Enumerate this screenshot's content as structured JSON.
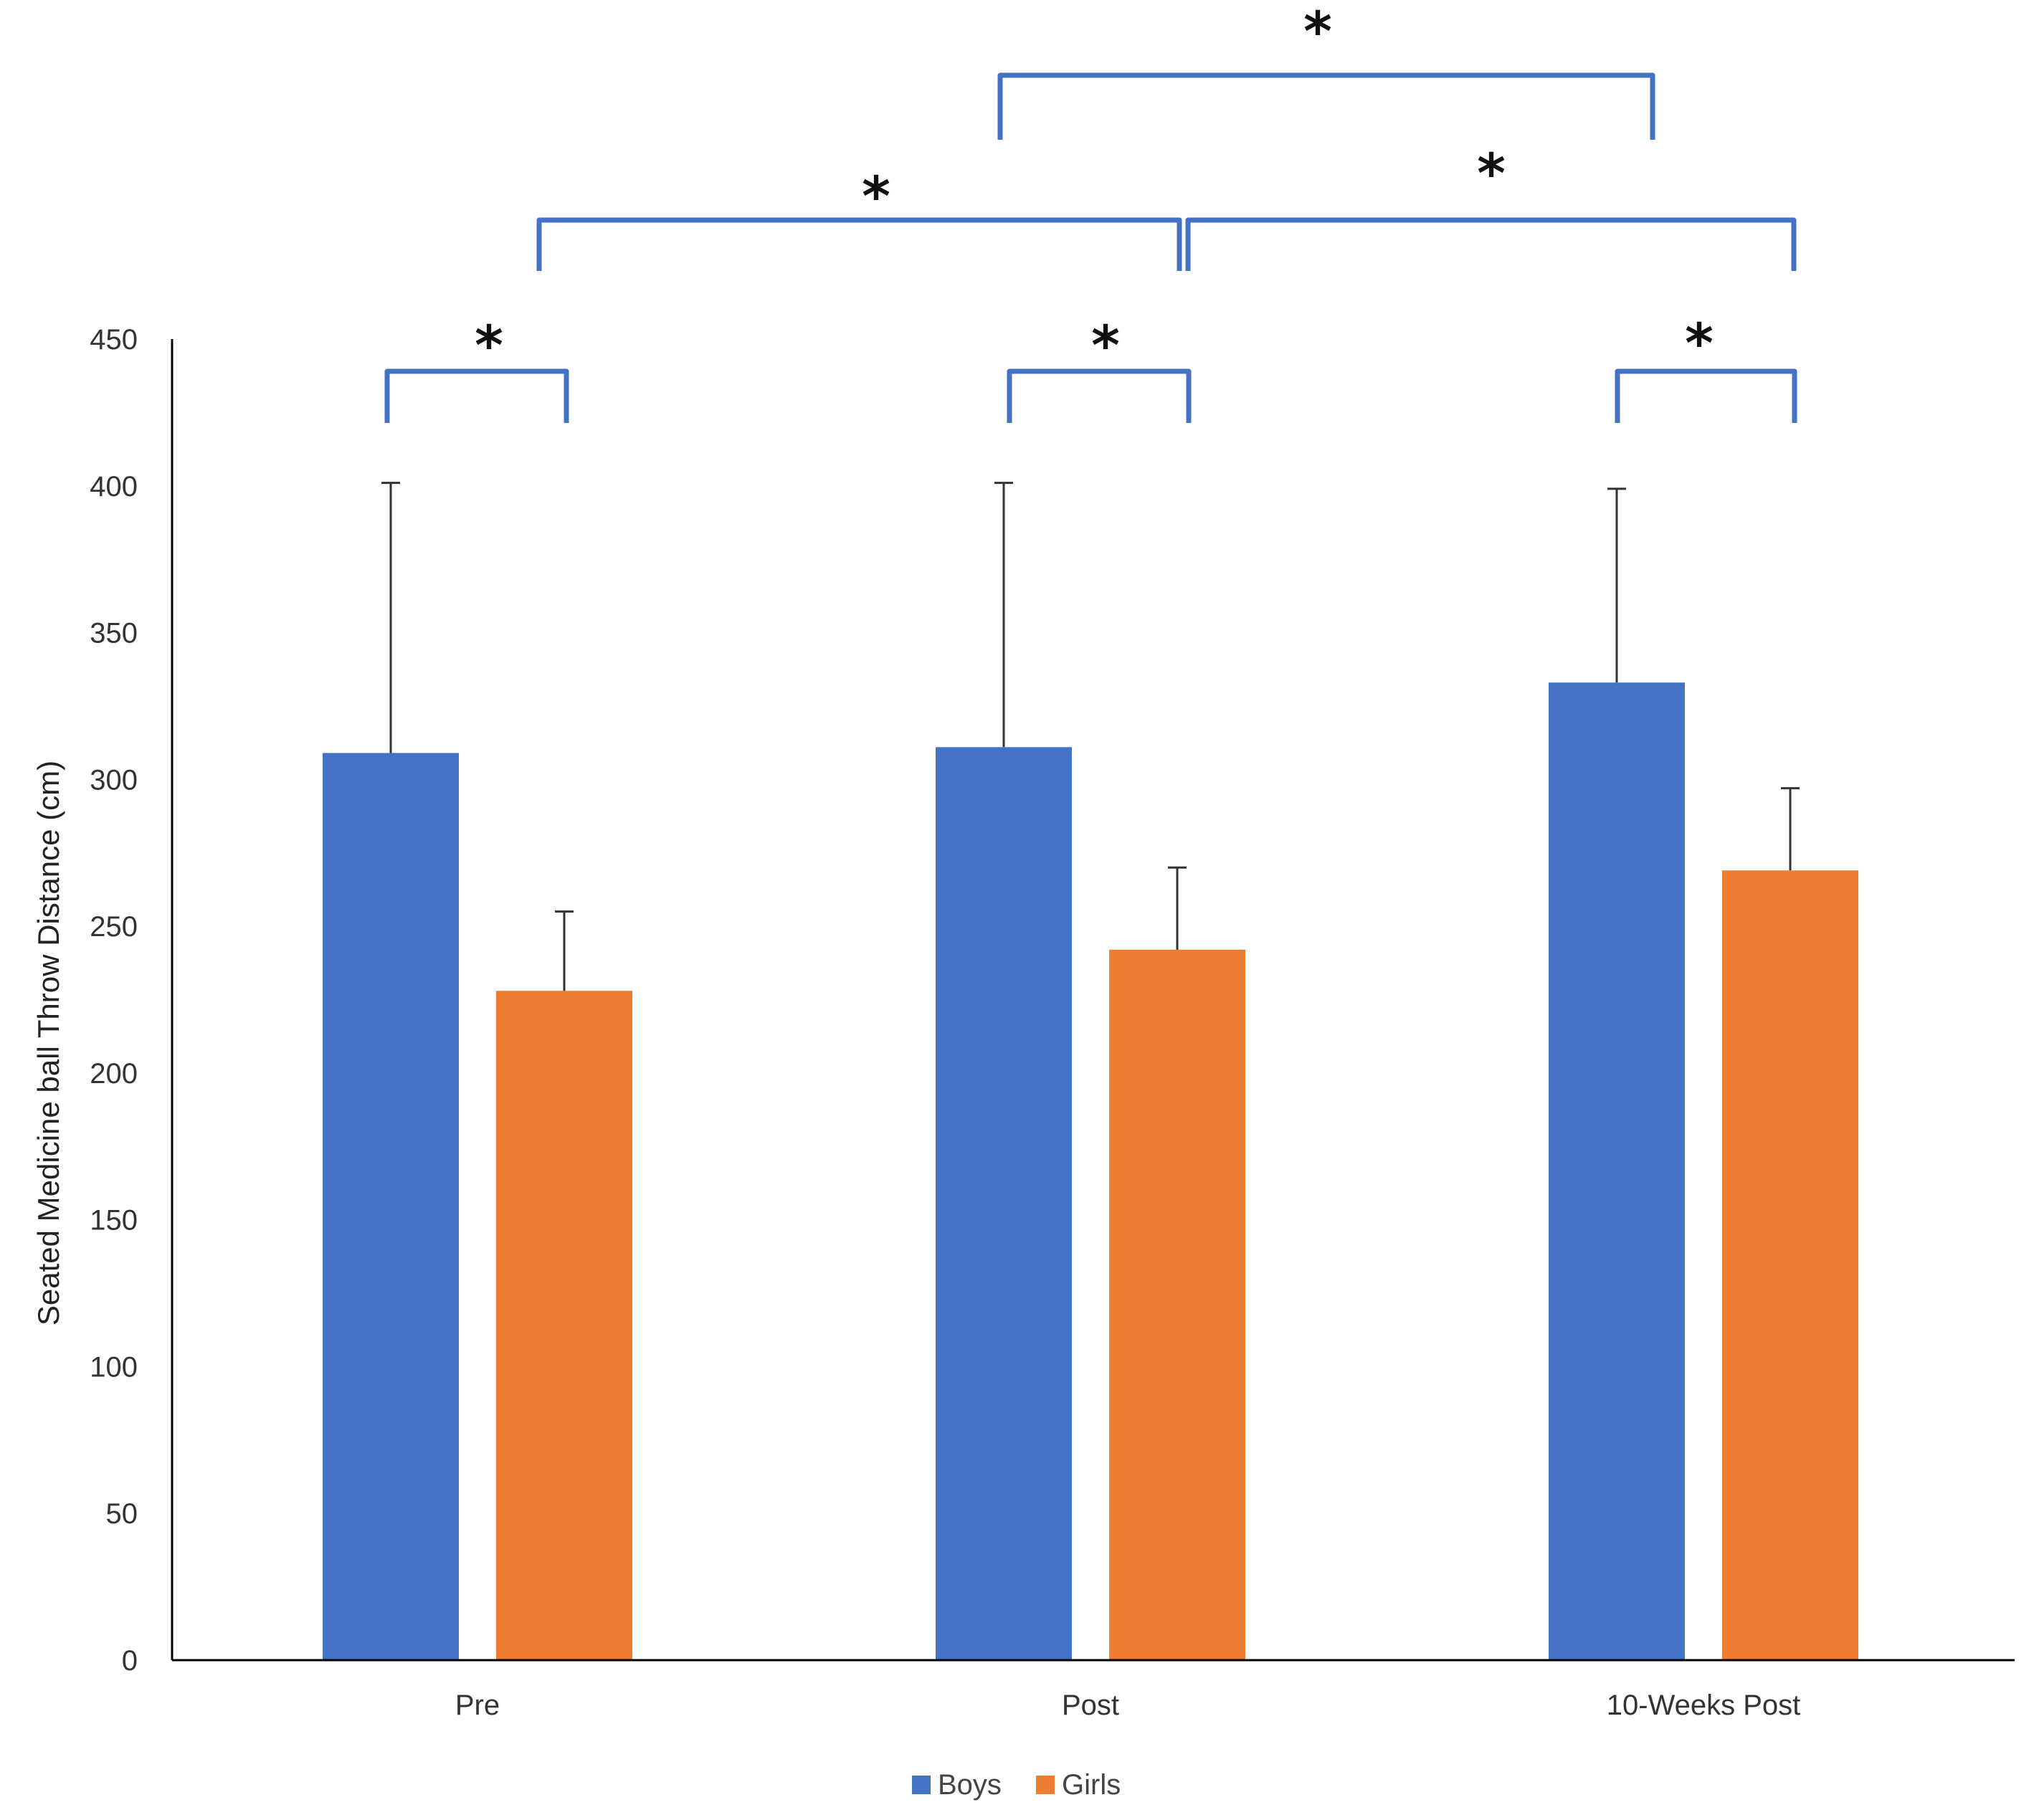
{
  "chart_data": {
    "type": "bar",
    "title": "",
    "xlabel": "",
    "ylabel": "Seated Medicine ball Throw Distance (cm)",
    "ylim": [
      0,
      450
    ],
    "yticks": [
      "0",
      "50",
      "100",
      "150",
      "200",
      "250",
      "300",
      "350",
      "400",
      "450"
    ],
    "grid": false,
    "legend_position": "bottom-center",
    "categories": [
      "Pre",
      "Post",
      "10-Weeks Post"
    ],
    "series": [
      {
        "name": "Boys",
        "color": "#4472C4",
        "values": [
          309,
          311,
          333
        ],
        "error": [
          92,
          90,
          66
        ]
      },
      {
        "name": "Girls",
        "color": "#ED7D31",
        "values": [
          228,
          242,
          269
        ],
        "error": [
          27,
          28,
          28
        ]
      }
    ],
    "significance": [
      {
        "label": "*",
        "between": "Pre Boys vs Pre Girls"
      },
      {
        "label": "*",
        "between": "Post Boys vs Post Girls"
      },
      {
        "label": "*",
        "between": "10-Weeks Post Boys vs 10-Weeks Post Girls"
      },
      {
        "label": "*",
        "between": "Pre vs Post"
      },
      {
        "label": "*",
        "between": "Post vs 10-Weeks Post"
      },
      {
        "label": "*",
        "between": "Post vs 10-Weeks Post (Boys)"
      }
    ],
    "bracket_color": "#4472C4",
    "error_bar_color": "#333333"
  }
}
